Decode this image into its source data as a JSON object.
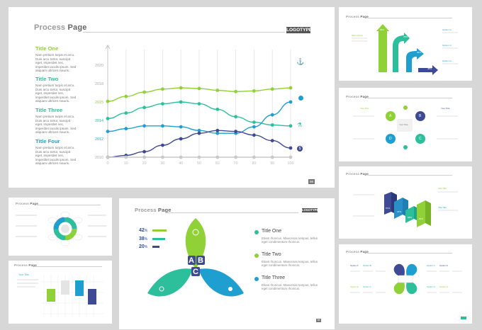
{
  "colors": {
    "green": "#8fd137",
    "teal": "#2dbf9c",
    "blue": "#1f9fd0",
    "navy": "#3e4a94",
    "grid": "#e2e2e2",
    "axis": "#c6c6c6"
  },
  "slide1": {
    "title_a": "Process",
    "title_b": "Page",
    "logo": "LOGOTYPE",
    "page": "98",
    "items": [
      {
        "title": "Title One",
        "body": "Nam pretium turpis et arcu. Duis arcu tortor, suscipit eget, imperdiet nec, imperdiet iaculis ipsum. Sed aliquam ultrices mauris."
      },
      {
        "title": "Title Two",
        "body": "Nam pretium turpis et arcu. Duis arcu tortor, suscipit eget, imperdiet nec, imperdiet iaculis ipsum. Sed aliquam ultrices mauris."
      },
      {
        "title": "Title Three",
        "body": "Nam pretium turpis et arcu. Duis arcu tortor, suscipit eget, imperdiet nec, imperdiet iaculis ipsum. Sed aliquam ultrices mauris."
      },
      {
        "title": "Title Four",
        "body": "Nam pretium turpis et arcu. Duis arcu tortor, suscipit eget, imperdiet nec, imperdiet iaculis ipsum. Sed aliquam ultrices mauris."
      }
    ],
    "icons": [
      "anchor-icon",
      "lightbulb-icon",
      "flask-icon",
      "money-bag-icon"
    ]
  },
  "chart_data": {
    "type": "line",
    "x": [
      0,
      10,
      20,
      30,
      40,
      50,
      60,
      70,
      80,
      90,
      100
    ],
    "yticks": [
      "2010",
      "2012",
      "2014",
      "2015",
      "2018",
      "2020"
    ],
    "grid": true,
    "series": [
      {
        "color": "#8fd137",
        "values": [
          2015.1,
          2015.9,
          2016.6,
          2017.1,
          2017.3,
          2017.2,
          2016.9,
          2016.7,
          2016.8,
          2017.1,
          2017.3
        ]
      },
      {
        "color": "#2dbf9c",
        "values": [
          2014.1,
          2014.4,
          2014.7,
          2014.9,
          2015.0,
          2014.9,
          2014.6,
          2014.2,
          2013.8,
          2013.5,
          2013.4
        ]
      },
      {
        "color": "#1f9fd0",
        "values": [
          2012.8,
          2013.1,
          2013.4,
          2013.4,
          2013.3,
          2012.9,
          2012.6,
          2012.6,
          2013.3,
          2014.3,
          2015.0
        ]
      },
      {
        "color": "#3e4a94",
        "values": [
          2010.0,
          2010.2,
          2010.6,
          2011.3,
          2012.0,
          2012.6,
          2012.9,
          2012.8,
          2012.4,
          2011.8,
          2011.0
        ]
      },
      {
        "color": "#c9c9c9",
        "values": [
          2010,
          2010,
          2010,
          2010,
          2010,
          2010,
          2010,
          2010,
          2010,
          2010,
          2010
        ]
      }
    ]
  },
  "slide5": {
    "title_a": "Process",
    "title_b": "Page",
    "logo": "LOGOTYPE",
    "page": "98",
    "bars": [
      {
        "pct": "42",
        "sym": "%",
        "color": "#8fd137",
        "fill": 0.42
      },
      {
        "pct": "38",
        "sym": "%",
        "color": "#2dbf9c",
        "fill": 0.38
      },
      {
        "pct": "20",
        "sym": "%",
        "color": "#3e4a94",
        "fill": 0.2
      }
    ],
    "letters": [
      "A",
      "B",
      "C"
    ],
    "items": [
      {
        "title": "Title One",
        "body": "Etiam rhoncus. Maecenas tempus, tellus eget condimentum rhoncus.",
        "color": "#2dbf9c"
      },
      {
        "title": "Title Two",
        "body": "Etiam rhoncus. Maecenas tempus, tellus eget condimentum rhoncus.",
        "color": "#8fd137"
      },
      {
        "title": "Title Three",
        "body": "Etiam rhoncus. Maecenas tempus, tellus eget condimentum rhoncus.",
        "color": "#1f9fd0"
      }
    ]
  },
  "thumbs": {
    "process_a": "Process",
    "process_b": "Page",
    "arrows": {
      "main": "Main Option",
      "pcts": [
        "88%",
        "78%",
        "56%",
        "48%"
      ],
      "opts": [
        "Option nn",
        "Option nn",
        "Option nn"
      ]
    },
    "abcd": {
      "title": "Your Title",
      "center": "Your Title",
      "letters": [
        "A",
        "B",
        "C",
        "D"
      ],
      "labels": [
        "Your Title",
        "Your Title"
      ]
    },
    "iso": {
      "pcts": [
        "57%",
        "47%",
        "68%",
        "83%"
      ],
      "labels": [
        "Title Title",
        "Title Title"
      ]
    },
    "quad": {
      "options": [
        "Option A",
        "Option B",
        "Option C",
        "Option D",
        "Option E",
        "Option F",
        "Option G",
        "Option H"
      ]
    },
    "small_left": {
      "title": "Your Title"
    }
  }
}
